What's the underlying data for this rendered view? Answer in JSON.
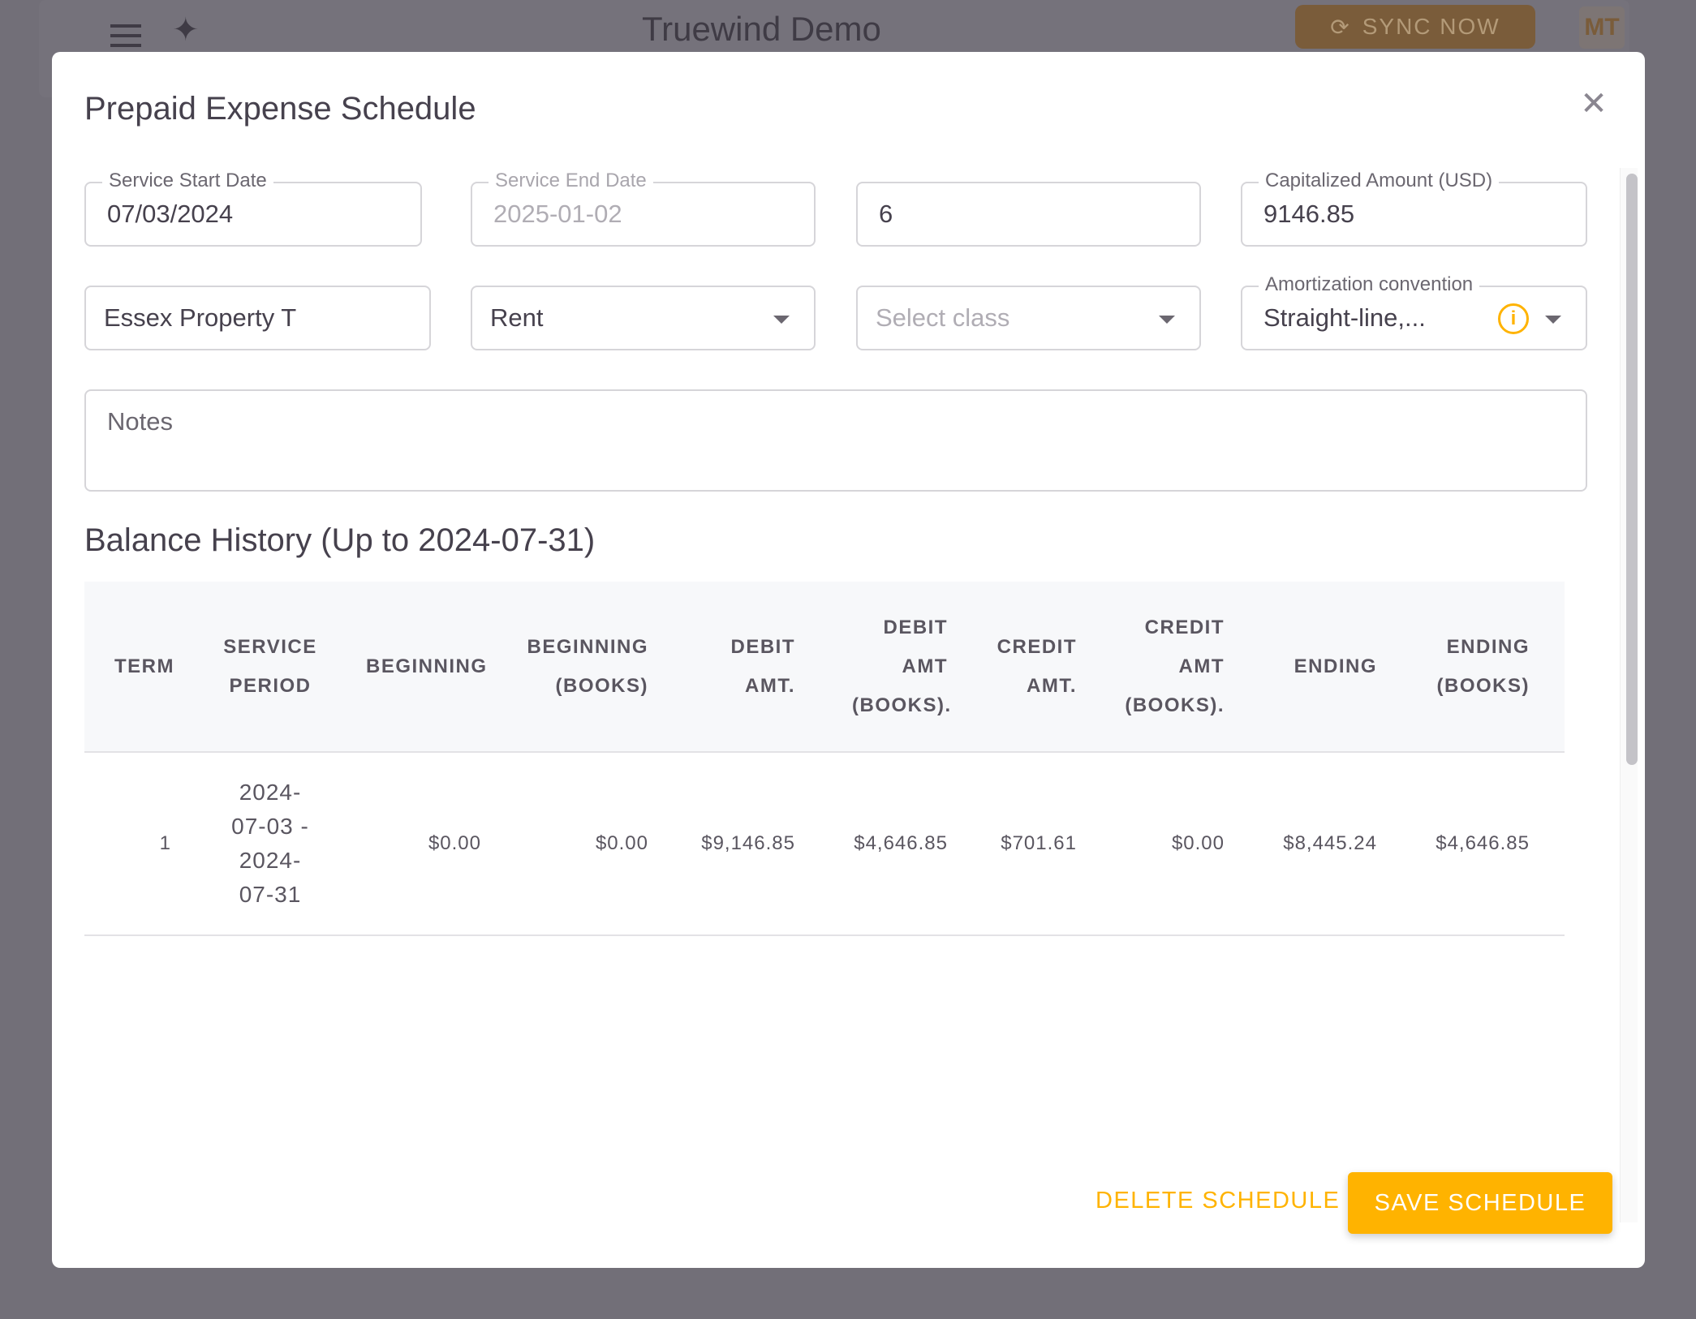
{
  "app": {
    "title": "Truewind Demo",
    "sync_label": "SYNC NOW",
    "avatar_initials": "MT"
  },
  "modal": {
    "title": "Prepaid Expense Schedule",
    "fields": {
      "service_start": {
        "label": "Service Start Date",
        "value": "07/03/2024"
      },
      "service_end": {
        "label": "Service End Date",
        "value": "2025-01-02"
      },
      "term": {
        "value": "6"
      },
      "capitalized": {
        "label": "Capitalized Amount (USD)",
        "value": "9146.85"
      },
      "vendor": {
        "value": "Essex Property T"
      },
      "category": {
        "value": "Rent"
      },
      "class": {
        "placeholder": "Select class"
      },
      "convention": {
        "label": "Amortization convention",
        "value": "Straight-line,..."
      },
      "notes": {
        "placeholder": "Notes"
      }
    },
    "balance_title": "Balance History (Up to 2024-07-31)",
    "table": {
      "headers": [
        "TERM",
        "SERVICE PERIOD",
        "BEGINNING",
        "BEGINNING (BOOKS)",
        "DEBIT AMT.",
        "DEBIT AMT (BOOKS).",
        "CREDIT AMT.",
        "CREDIT AMT (BOOKS).",
        "ENDING",
        "ENDING (BOOKS)"
      ],
      "rows": [
        [
          "1",
          "2024-07-03 - 2024-07-31",
          "$0.00",
          "$0.00",
          "$9,146.85",
          "$4,646.85",
          "$701.61",
          "$0.00",
          "$8,445.24",
          "$4,646.85"
        ]
      ]
    },
    "delete_label": "DELETE SCHEDULE",
    "save_label": "SAVE SCHEDULE"
  },
  "colors": {
    "accent": "#ffb300",
    "overlay": "#726f78"
  }
}
